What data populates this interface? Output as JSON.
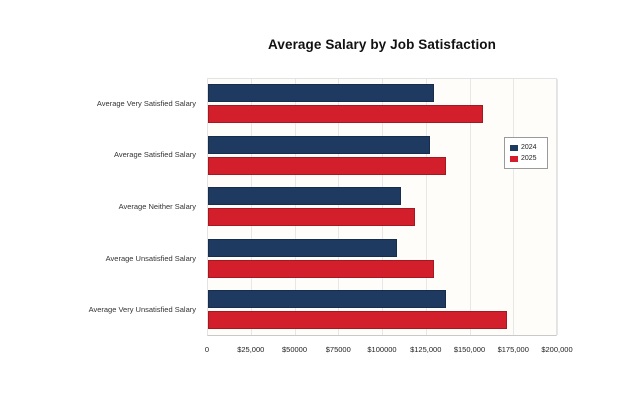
{
  "chart_data": {
    "type": "bar",
    "orientation": "horizontal",
    "title": "Average Salary by Job Satisfaction",
    "categories": [
      "Average Very Satisfied Salary",
      "Average Satisfied Salary",
      "Average Neither Salary",
      "Average Unsatisfied Salary",
      "Average Very Unsatisfied Salary"
    ],
    "series": [
      {
        "name": "2024",
        "color": "#1f3a60",
        "values": [
          129000,
          127000,
          110500,
          108000,
          136000
        ]
      },
      {
        "name": "2025",
        "color": "#d21f2b",
        "values": [
          157000,
          136000,
          118000,
          129000,
          171000
        ]
      }
    ],
    "xlabel": "",
    "ylabel": "",
    "xlim": [
      0,
      200000
    ],
    "x_tick_values": [
      0,
      25000,
      50000,
      75000,
      100000,
      125000,
      150000,
      175000,
      200000
    ],
    "x_tick_labels": [
      "0",
      "$25,000",
      "$50000",
      "$75000",
      "$100000",
      "$125,000",
      "$150,000",
      "$175,000",
      "$200,000"
    ],
    "grid": "vertical-gridlines-on",
    "legend_position": "right-center",
    "legend_entries": [
      "2024",
      "2025"
    ]
  }
}
